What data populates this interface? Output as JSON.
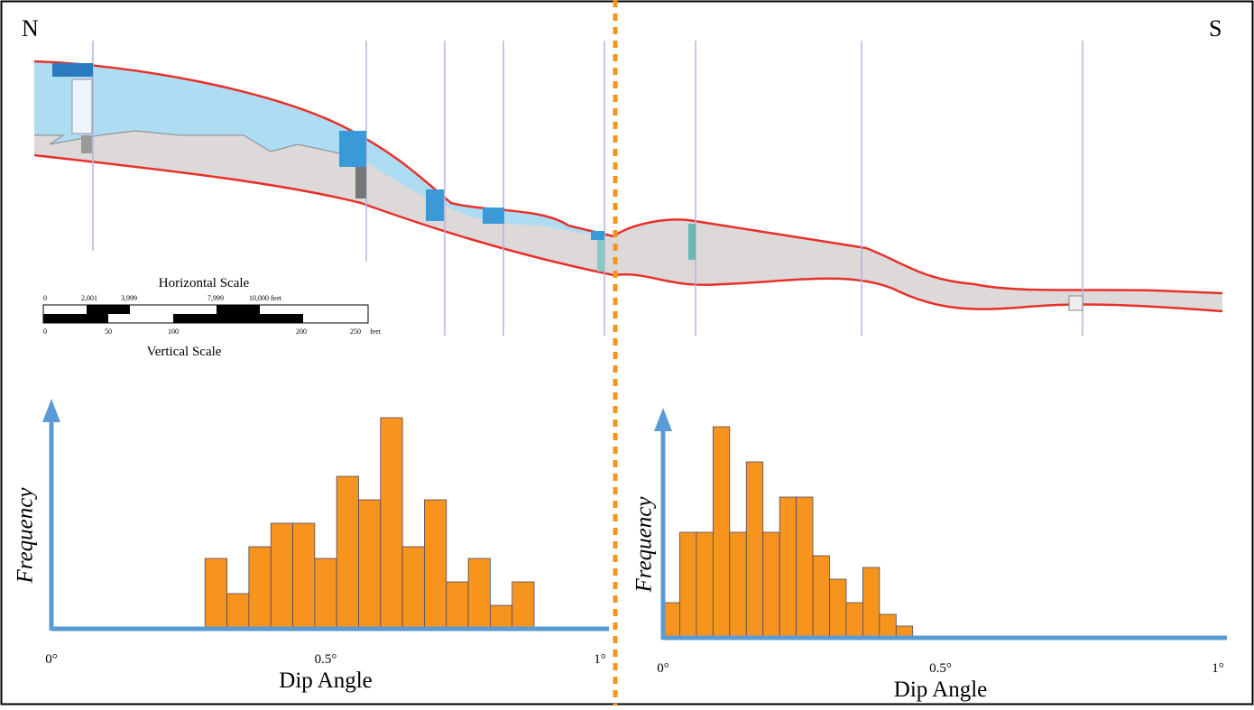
{
  "cross_section": {
    "north": "N",
    "south": "S",
    "horizontal_scale": {
      "title": "Horizontal Scale",
      "labels": [
        "0",
        "2,001",
        "3,999",
        "7,999",
        "10,000 feet"
      ]
    },
    "vertical_scale": {
      "title": "Vertical Scale",
      "labels": [
        "0",
        "50",
        "100",
        "200",
        "250",
        "feet"
      ]
    }
  },
  "chart_data": [
    {
      "type": "histogram",
      "x_label": "Dip Angle",
      "y_label": "Frequency",
      "color": "#f7941d",
      "bins": [
        0.28,
        0.32,
        0.36,
        0.4,
        0.44,
        0.48,
        0.52,
        0.56,
        0.6,
        0.64,
        0.68,
        0.72,
        0.76,
        0.8,
        0.84,
        0.88
      ],
      "values": [
        6,
        3,
        7,
        9,
        9,
        6,
        13,
        11,
        18,
        7,
        11,
        4,
        6,
        2,
        4
      ],
      "xlim": [
        0,
        1
      ],
      "ylim": [
        0,
        19
      ],
      "xticks": [
        {
          "value": 0,
          "label": "0°"
        },
        {
          "value": 0.5,
          "label": "0.5°"
        },
        {
          "value": 1,
          "label": "1°"
        }
      ]
    },
    {
      "type": "histogram",
      "x_label": "Dip Angle",
      "y_label": "Frequency",
      "color": "#f7941d",
      "bins": [
        0,
        0.03,
        0.06,
        0.09,
        0.12,
        0.15,
        0.18,
        0.21,
        0.24,
        0.27,
        0.3,
        0.33,
        0.36,
        0.39,
        0.42,
        0.45
      ],
      "values": [
        3,
        9,
        9,
        18,
        9,
        15,
        9,
        12,
        12,
        7,
        5,
        3,
        6,
        2,
        1
      ],
      "xlim": [
        0,
        1
      ],
      "ylim": [
        0,
        19
      ],
      "xticks": [
        {
          "value": 0,
          "label": "0°"
        },
        {
          "value": 0.5,
          "label": "0.5°"
        },
        {
          "value": 1,
          "label": "1°"
        }
      ]
    }
  ]
}
